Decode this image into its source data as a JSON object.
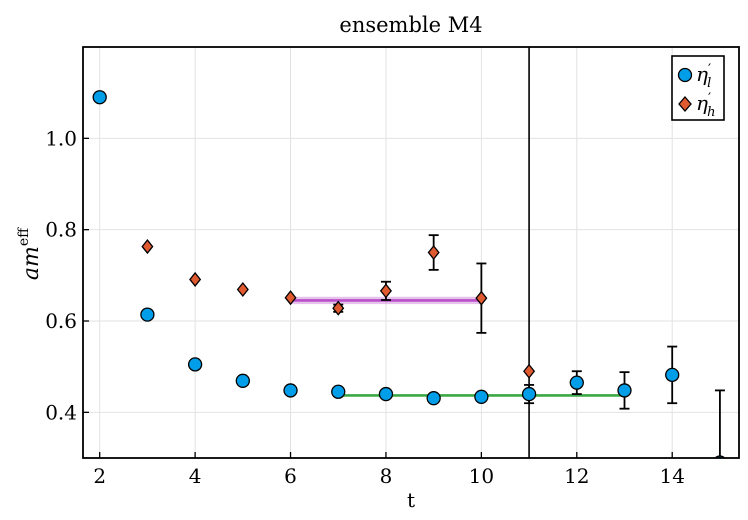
{
  "chart_data": {
    "type": "scatter",
    "title": "ensemble M4",
    "xlabel": "t",
    "ylabel": "am",
    "ylabel_superscript": "eff",
    "xlim": [
      1.65,
      15.4
    ],
    "ylim": [
      0.3,
      1.2
    ],
    "x_ticks": [
      2,
      4,
      6,
      8,
      10,
      12,
      14
    ],
    "x_tick_labels": [
      "2",
      "4",
      "6",
      "8",
      "10",
      "12",
      "14"
    ],
    "y_ticks": [
      0.4,
      0.6,
      0.8,
      1.0
    ],
    "y_tick_labels": [
      "0.4",
      "0.6",
      "0.8",
      "1.0"
    ],
    "grid": true,
    "legend_position": "top-right",
    "vertical_line_x": 11,
    "series": [
      {
        "name": "η′_l",
        "legend_base": "η",
        "legend_prime": "′",
        "legend_sub": "l",
        "marker": "circle",
        "color": "#009ee8",
        "points": [
          {
            "x": 2,
            "y": 1.09,
            "err": 0.0
          },
          {
            "x": 3,
            "y": 0.614,
            "err": 0.0
          },
          {
            "x": 4,
            "y": 0.505,
            "err": 0.0
          },
          {
            "x": 5,
            "y": 0.469,
            "err": 0.0
          },
          {
            "x": 6,
            "y": 0.448,
            "err": 0.0
          },
          {
            "x": 7,
            "y": 0.445,
            "err": 0.0
          },
          {
            "x": 8,
            "y": 0.44,
            "err": 0.0
          },
          {
            "x": 9,
            "y": 0.431,
            "err": 0.0
          },
          {
            "x": 10,
            "y": 0.434,
            "err": 0.005
          },
          {
            "x": 11,
            "y": 0.44,
            "err": 0.02
          },
          {
            "x": 12,
            "y": 0.465,
            "err": 0.025
          },
          {
            "x": 13,
            "y": 0.448,
            "err": 0.04
          },
          {
            "x": 14,
            "y": 0.482,
            "err": 0.062
          },
          {
            "x": 15,
            "y": 0.29,
            "err": 0.158
          }
        ],
        "fit": {
          "x_start": 7,
          "x_end": 13,
          "value": 0.437,
          "color": "#3aa845"
        }
      },
      {
        "name": "η′_h",
        "legend_base": "η",
        "legend_prime": "′",
        "legend_sub": "h",
        "marker": "diamond",
        "color": "#e05a30",
        "points": [
          {
            "x": 3,
            "y": 0.763,
            "err": 0.0
          },
          {
            "x": 4,
            "y": 0.691,
            "err": 0.0
          },
          {
            "x": 5,
            "y": 0.669,
            "err": 0.0
          },
          {
            "x": 6,
            "y": 0.651,
            "err": 0.0
          },
          {
            "x": 7,
            "y": 0.628,
            "err": 0.008
          },
          {
            "x": 8,
            "y": 0.666,
            "err": 0.02
          },
          {
            "x": 9,
            "y": 0.75,
            "err": 0.038
          },
          {
            "x": 10,
            "y": 0.65,
            "err": 0.076
          },
          {
            "x": 11,
            "y": 0.49,
            "err": 0.0
          }
        ],
        "fit": {
          "x_start": 6,
          "x_end": 10,
          "value": 0.645,
          "color": "#b94fc8",
          "band": 0.008
        }
      }
    ]
  }
}
